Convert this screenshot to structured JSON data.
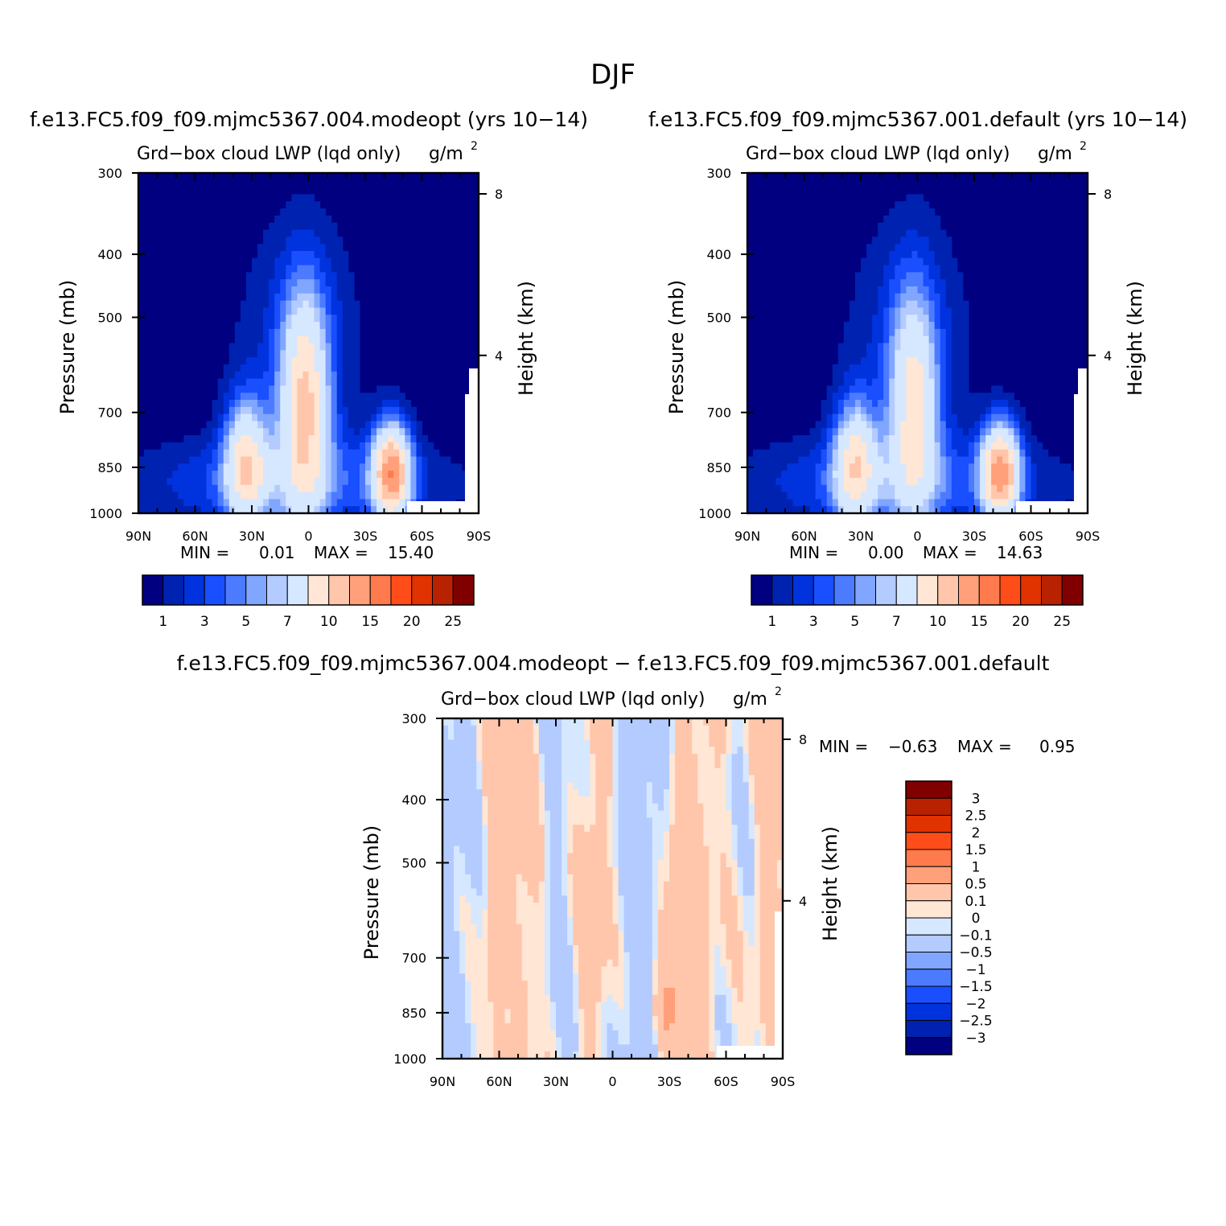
{
  "page": {
    "season_title": "DJF"
  },
  "colors": {
    "abs_scale": [
      "#000080",
      "#0022b0",
      "#0033dd",
      "#1a4fff",
      "#4d7bff",
      "#80a6ff",
      "#b3cbff",
      "#d6e8ff",
      "#ffe6d5",
      "#ffc6ab",
      "#ffa07a",
      "#ff7a4d",
      "#ff4d1a",
      "#e03300",
      "#b82200",
      "#800000"
    ],
    "diff_scale": [
      "#000080",
      "#0022b0",
      "#0033dd",
      "#1a4fff",
      "#4d7bff",
      "#80a6ff",
      "#b3cbff",
      "#d6e8ff",
      "#ffe6d5",
      "#ffc6ab",
      "#ffa07a",
      "#ff7a4d",
      "#ff4d1a",
      "#e03300",
      "#b82200",
      "#800000"
    ]
  },
  "chart_data": [
    {
      "type": "heatmap",
      "panel": "top-left",
      "case_title": "f.e13.FC5.f09_f09.mjmc5367.004.modeopt (yrs 10−14)",
      "variable": "Grd−box cloud LWP (lqd only)",
      "units": "g/m",
      "units_sup": "2",
      "ylabel": "Pressure (mb)",
      "ylabel_right": "Height (km)",
      "yticks": [
        "300",
        "400",
        "500",
        "700",
        "850",
        "1000"
      ],
      "ytick_values": [
        300,
        400,
        500,
        700,
        850,
        1000
      ],
      "height_ticks": [
        "8",
        "4"
      ],
      "height_tick_values": [
        8,
        4
      ],
      "xticks": [
        "90N",
        "60N",
        "30N",
        "0",
        "30S",
        "60S",
        "90S"
      ],
      "xtick_values": [
        90,
        60,
        30,
        0,
        -30,
        -60,
        -90
      ],
      "stats": {
        "min_label": "MIN =",
        "min": "0.01",
        "max_label": "MAX =",
        "max": "15.40"
      },
      "contour_levels": [
        "1",
        "3",
        "5",
        "7",
        "10",
        "15",
        "20",
        "25"
      ],
      "blobs": [
        {
          "lat": 2,
          "p": 680,
          "sigma_lat": 9,
          "sigma_lnp": 0.28,
          "amp": 11.5
        },
        {
          "lat": 33,
          "p": 840,
          "sigma_lat": 8,
          "sigma_lnp": 0.16,
          "amp": 10
        },
        {
          "lat": -44,
          "p": 865,
          "sigma_lat": 7,
          "sigma_lnp": 0.12,
          "amp": 15.4
        },
        {
          "lat": 10,
          "p": 900,
          "sigma_lat": 60,
          "sigma_lnp": 0.12,
          "amp": 3.5
        },
        {
          "lat": 5,
          "p": 550,
          "sigma_lat": 25,
          "sigma_lnp": 0.35,
          "amp": 2.2
        }
      ]
    },
    {
      "type": "heatmap",
      "panel": "top-right",
      "case_title": "f.e13.FC5.f09_f09.mjmc5367.001.default (yrs 10−14)",
      "variable": "Grd−box cloud LWP (lqd only)",
      "units": "g/m",
      "units_sup": "2",
      "ylabel": "Pressure (mb)",
      "ylabel_right": "Height (km)",
      "yticks": [
        "300",
        "400",
        "500",
        "700",
        "850",
        "1000"
      ],
      "ytick_values": [
        300,
        400,
        500,
        700,
        850,
        1000
      ],
      "height_ticks": [
        "8",
        "4"
      ],
      "height_tick_values": [
        8,
        4
      ],
      "xticks": [
        "90N",
        "60N",
        "30N",
        "0",
        "30S",
        "60S",
        "90S"
      ],
      "xtick_values": [
        90,
        60,
        30,
        0,
        -30,
        -60,
        -90
      ],
      "stats": {
        "min_label": "MIN =",
        "min": "0.00",
        "max_label": "MAX =",
        "max": "14.63"
      },
      "contour_levels": [
        "1",
        "3",
        "5",
        "7",
        "10",
        "15",
        "20",
        "25"
      ],
      "blobs": [
        {
          "lat": 2,
          "p": 680,
          "sigma_lat": 9,
          "sigma_lnp": 0.28,
          "amp": 9.5
        },
        {
          "lat": 33,
          "p": 840,
          "sigma_lat": 8,
          "sigma_lnp": 0.16,
          "amp": 9.5
        },
        {
          "lat": -44,
          "p": 865,
          "sigma_lat": 7,
          "sigma_lnp": 0.12,
          "amp": 14.6
        },
        {
          "lat": 10,
          "p": 900,
          "sigma_lat": 60,
          "sigma_lnp": 0.12,
          "amp": 3.5
        },
        {
          "lat": 5,
          "p": 550,
          "sigma_lat": 25,
          "sigma_lnp": 0.35,
          "amp": 2.2
        }
      ]
    },
    {
      "type": "heatmap",
      "panel": "bottom-difference",
      "case_title": "f.e13.FC5.f09_f09.mjmc5367.004.modeopt − f.e13.FC5.f09_f09.mjmc5367.001.default",
      "variable": "Grd−box cloud LWP (lqd only)",
      "units": "g/m",
      "units_sup": "2",
      "ylabel": "Pressure (mb)",
      "ylabel_right": "Height (km)",
      "yticks": [
        "300",
        "400",
        "500",
        "700",
        "850",
        "1000"
      ],
      "ytick_values": [
        300,
        400,
        500,
        700,
        850,
        1000
      ],
      "height_ticks": [
        "8",
        "4"
      ],
      "height_tick_values": [
        8,
        4
      ],
      "xticks": [
        "90N",
        "60N",
        "30N",
        "0",
        "30S",
        "60S",
        "90S"
      ],
      "xtick_values": [
        90,
        60,
        30,
        0,
        -30,
        -60,
        -90
      ],
      "stats": {
        "min_label": "MIN =",
        "min": "−0.63",
        "max_label": "MAX =",
        "max": "0.95"
      },
      "contour_levels": [
        "3",
        "2.5",
        "2",
        "1.5",
        "1",
        "0.5",
        "0.1",
        "0",
        "−0.1",
        "−0.5",
        "−1",
        "−1.5",
        "−2",
        "−2.5",
        "−3"
      ],
      "contour_level_values": [
        3,
        2.5,
        2,
        1.5,
        1,
        0.5,
        0.1,
        0,
        -0.1,
        -0.5,
        -1,
        -1.5,
        -2,
        -2.5,
        -3
      ]
    }
  ]
}
